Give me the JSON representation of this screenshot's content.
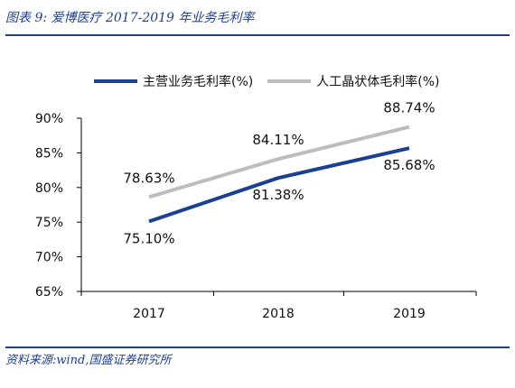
{
  "header": {
    "title": "图表 9:  爱博医疗 2017-2019 年业务毛利率"
  },
  "footer": {
    "source": "资料来源:wind,国盛证券研究所"
  },
  "chart_data": {
    "type": "line",
    "title": "",
    "xlabel": "",
    "ylabel": "",
    "categories": [
      "2017",
      "2018",
      "2019"
    ],
    "ylim": [
      65,
      90
    ],
    "yticks": [
      "65%",
      "70%",
      "75%",
      "80%",
      "85%",
      "90%"
    ],
    "grid": false,
    "legend_position": "top",
    "series": [
      {
        "name": "主营业务毛利率(%)",
        "values": [
          75.1,
          81.38,
          85.68
        ],
        "labels": [
          "75.10%",
          "81.38%",
          "85.68%"
        ],
        "color": "#1a3f93"
      },
      {
        "name": "人工晶状体毛利率(%)",
        "values": [
          78.63,
          84.11,
          88.74
        ],
        "labels": [
          "78.63%",
          "84.11%",
          "88.74%"
        ],
        "color": "#bdbdbd"
      }
    ]
  }
}
